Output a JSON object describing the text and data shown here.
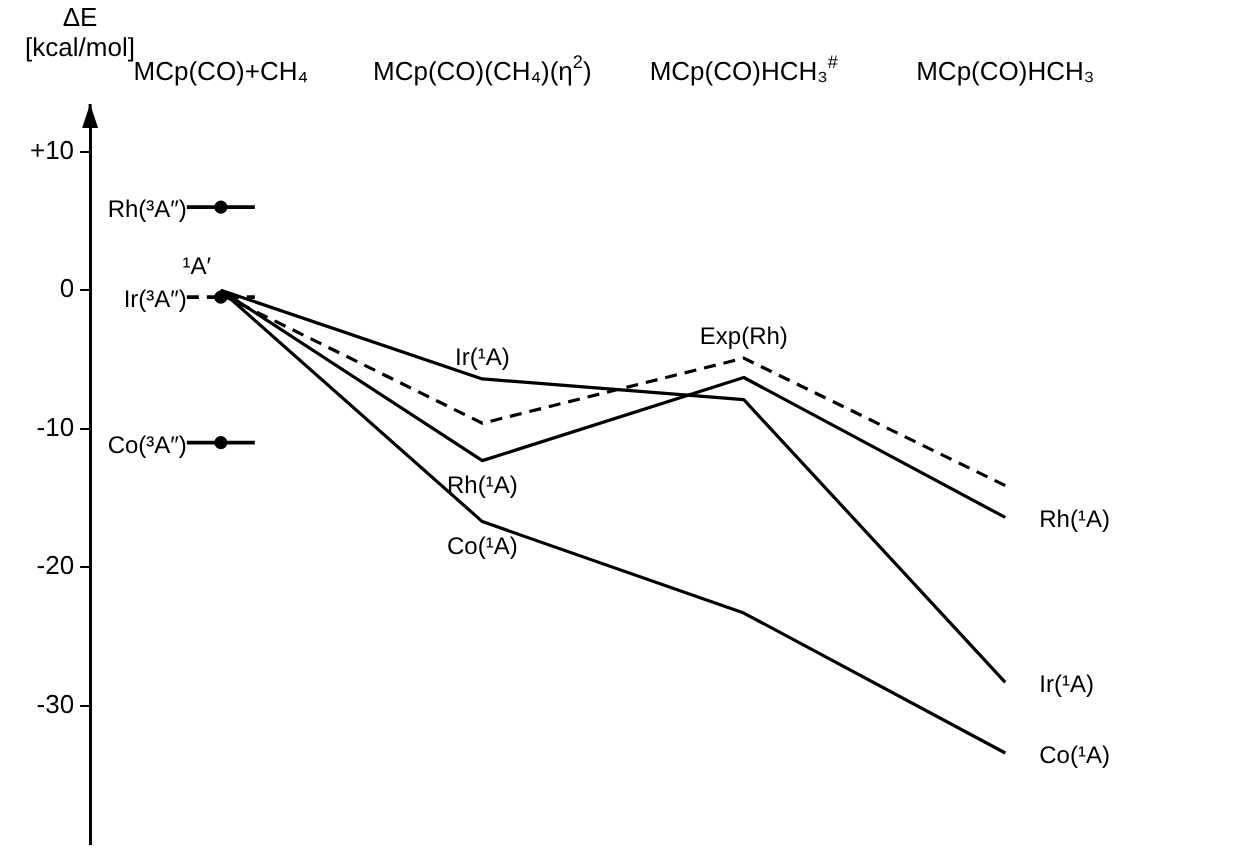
{
  "chart_data": {
    "type": "line",
    "ylabel": "ΔE\n[kcal/mol]",
    "categories": [
      "MCp(CO)+CH₄",
      "MCp(CO)(CH₄)(η$^{2}$)",
      "MCp(CO)HCH₃$^{#}$",
      "MCp(CO)HCH₃"
    ],
    "series": [
      {
        "color": "#000000",
        "values": [
          0,
          -6.4,
          -7.9,
          -28.3
        ]
      },
      {
        "color": "#000000",
        "values": [
          0,
          -12.3,
          -6.3,
          -16.4
        ]
      },
      {
        "color": "#000000",
        "values": [
          0,
          -16.7,
          -23.3,
          -33.4
        ]
      },
      {
        "color": "#000000",
        "values": [
          -0.3,
          -9.6,
          -4.9,
          -14.1
        ],
        "line_style": "dashed"
      },
      {
        "type": "scatter",
        "color": "#000000",
        "values": [
          6,
          null,
          null,
          null
        ],
        "marker": "circle"
      },
      {
        "type": "scatter",
        "color": "#000000",
        "values": [
          -0.5,
          null,
          null,
          null
        ],
        "line_style": "dashed",
        "marker": "circle"
      },
      {
        "type": "scatter",
        "color": "#000000",
        "values": [
          -11,
          null,
          null,
          null
        ],
        "marker": "circle"
      }
    ],
    "annotations": [
      {
        "text": "Rh(³A″)",
        "x": "MCp(CO)+CH₄",
        "y": 6
      },
      {
        "text": "¹A′",
        "x": "MCp(CO)+CH₄",
        "y": 0
      },
      {
        "text": "Ir(³A″)",
        "x": "MCp(CO)+CH₄",
        "y": -0.5
      },
      {
        "text": "Co(³A″)",
        "x": "MCp(CO)+CH₄",
        "y": -11
      },
      {
        "text": "Ir(¹A)",
        "x": "MCp(CO)(CH₄)(η$^{2}$)",
        "y": -6.4
      },
      {
        "text": "Rh(¹A)",
        "x": "MCp(CO)(CH₄)(η$^{2}$)",
        "y": -12.3
      },
      {
        "text": "Co(¹A)",
        "x": "MCp(CO)(CH₄)(η$^{2}$)",
        "y": -16.7
      },
      {
        "text": "Exp(Rh)",
        "x": "MCp(CO)HCH₃$^{#}$",
        "y": -4.9
      },
      {
        "text": "Rh(¹A)",
        "x": "MCp(CO)HCH₃",
        "y": -16.4
      },
      {
        "text": "Ir(¹A)",
        "x": "MCp(CO)HCH₃",
        "y": -28.3
      },
      {
        "text": "Co(¹A)",
        "x": "MCp(CO)HCH₃",
        "y": -33.4
      }
    ],
    "ylim": [
      -40,
      12
    ],
    "yticks": [
      {
        "value": 10,
        "label": "+10"
      },
      0,
      -10,
      -20,
      -30
    ],
    "grid": false,
    "legend": false
  }
}
